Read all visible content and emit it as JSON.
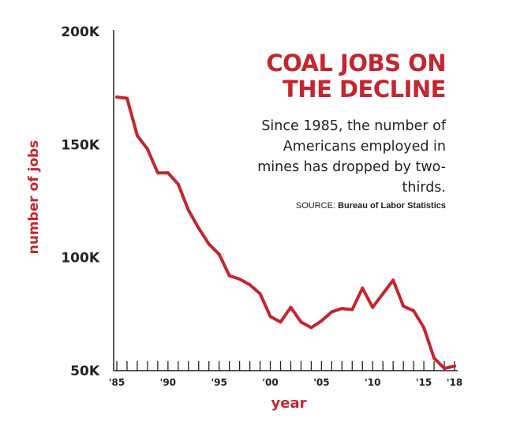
{
  "chart_data": {
    "type": "line",
    "title": [
      "COAL JOBS ON",
      "THE DECLINE"
    ],
    "subtitle": "Since 1985, the number of Americans employed in mines has dropped by two-thirds.",
    "source_label": "SOURCE:",
    "source_name": "Bureau of Labor Statistics",
    "xlabel": "year",
    "ylabel": "number of jobs",
    "xlim": [
      1985,
      2018
    ],
    "ylim": [
      50000,
      200000
    ],
    "y_ticks": [
      {
        "value": 50000,
        "label": "50K"
      },
      {
        "value": 100000,
        "label": "100K"
      },
      {
        "value": 150000,
        "label": "150K"
      },
      {
        "value": 200000,
        "label": "200K"
      }
    ],
    "x_ticks": [
      {
        "value": 1985,
        "label": "'85"
      },
      {
        "value": 1990,
        "label": "'90"
      },
      {
        "value": 1995,
        "label": "'95"
      },
      {
        "value": 2000,
        "label": "'00"
      },
      {
        "value": 2005,
        "label": "'05"
      },
      {
        "value": 2010,
        "label": "'10"
      },
      {
        "value": 2015,
        "label": "'15"
      },
      {
        "value": 2018,
        "label": "'18"
      }
    ],
    "line_color": "#c3262f",
    "grid": false,
    "series": [
      {
        "x": [
          1985,
          1986,
          1987,
          1988,
          1989,
          1990,
          1991,
          1992,
          1993,
          1994,
          1995,
          1996,
          1997,
          1998,
          1999,
          2000,
          2001,
          2002,
          2003,
          2004,
          2005,
          2006,
          2007,
          2008,
          2009,
          2010,
          2011,
          2012,
          2013,
          2014,
          2015,
          2016,
          2017,
          2018
        ],
        "values": [
          171000,
          170500,
          154000,
          148000,
          137500,
          137500,
          132500,
          121000,
          113000,
          106000,
          101500,
          92000,
          90500,
          88000,
          84000,
          74000,
          71500,
          78000,
          71500,
          69000,
          72000,
          76000,
          77500,
          77000,
          86500,
          78000,
          84000,
          90000,
          78500,
          76500,
          69000,
          55500,
          51000,
          52000
        ]
      }
    ]
  }
}
